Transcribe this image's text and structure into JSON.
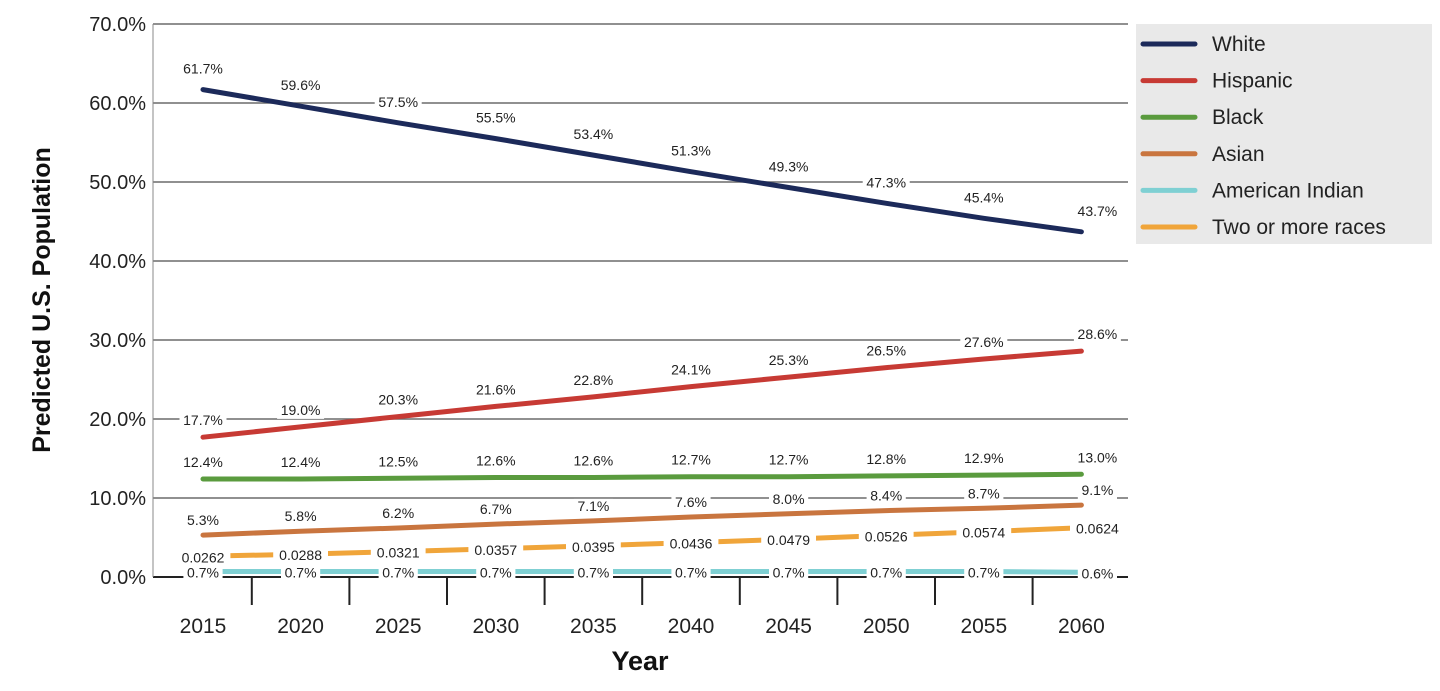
{
  "chart_data": {
    "type": "line",
    "title": "",
    "xlabel": "Year",
    "ylabel": "Predicted U.S. Population",
    "x": [
      2015,
      2020,
      2025,
      2030,
      2035,
      2040,
      2045,
      2050,
      2055,
      2060
    ],
    "x_tick_labels": [
      "2015",
      "2020",
      "2025",
      "2030",
      "2035",
      "2040",
      "2045",
      "2050",
      "2055",
      "2060"
    ],
    "ylim": [
      0,
      70
    ],
    "y_ticks": [
      0,
      10,
      20,
      30,
      40,
      50,
      60,
      70
    ],
    "y_tick_labels": [
      "0.0%",
      "10.0%",
      "20.0%",
      "30.0%",
      "40.0%",
      "50.0%",
      "60.0%",
      "70.0%"
    ],
    "grid": true,
    "legend_position": "top-right",
    "series": [
      {
        "name": "White",
        "color": "#1c2a5a",
        "values": [
          61.7,
          59.6,
          57.5,
          55.5,
          53.4,
          51.3,
          49.3,
          47.3,
          45.4,
          43.7
        ],
        "labels": [
          "61.7%",
          "59.6%",
          "57.5%",
          "55.5%",
          "53.4%",
          "51.3%",
          "49.3%",
          "47.3%",
          "45.4%",
          "43.7%"
        ]
      },
      {
        "name": "Hispanic",
        "color": "#c73a34",
        "values": [
          17.7,
          19.0,
          20.3,
          21.6,
          22.8,
          24.1,
          25.3,
          26.5,
          27.6,
          28.6
        ],
        "labels": [
          "17.7%",
          "19.0%",
          "20.3%",
          "21.6%",
          "22.8%",
          "24.1%",
          "25.3%",
          "26.5%",
          "27.6%",
          "28.6%"
        ]
      },
      {
        "name": "Black",
        "color": "#5a9b3e",
        "values": [
          12.4,
          12.4,
          12.5,
          12.6,
          12.6,
          12.7,
          12.7,
          12.8,
          12.9,
          13.0
        ],
        "labels": [
          "12.4%",
          "12.4%",
          "12.5%",
          "12.6%",
          "12.6%",
          "12.7%",
          "12.7%",
          "12.8%",
          "12.9%",
          "13.0%"
        ]
      },
      {
        "name": "Asian",
        "color": "#c9753f",
        "values": [
          5.3,
          5.8,
          6.2,
          6.7,
          7.1,
          7.6,
          8.0,
          8.4,
          8.7,
          9.1
        ],
        "labels": [
          "5.3%",
          "5.8%",
          "6.2%",
          "6.7%",
          "7.1%",
          "7.6%",
          "8.0%",
          "8.4%",
          "8.7%",
          "9.1%"
        ]
      },
      {
        "name": "American Indian",
        "color": "#7fd0d3",
        "values": [
          0.7,
          0.7,
          0.7,
          0.7,
          0.7,
          0.7,
          0.7,
          0.7,
          0.7,
          0.6
        ],
        "labels": [
          "0.7%",
          "0.7%",
          "0.7%",
          "0.7%",
          "0.7%",
          "0.7%",
          "0.7%",
          "0.7%",
          "0.7%",
          "0.6%"
        ]
      },
      {
        "name": "Two or more races",
        "color": "#f0a53a",
        "values": [
          2.62,
          2.88,
          3.21,
          3.57,
          3.95,
          4.36,
          4.79,
          5.26,
          5.74,
          6.24
        ],
        "labels": [
          "0.0262",
          "0.0288",
          "0.0321",
          "0.0357",
          "0.0395",
          "0.0436",
          "0.0479",
          "0.0526",
          "0.0574",
          "0.0624"
        ]
      }
    ]
  }
}
